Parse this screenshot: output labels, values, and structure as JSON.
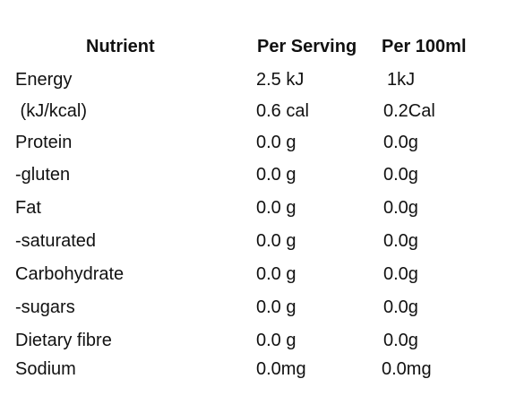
{
  "headers": {
    "nutrient": "Nutrient",
    "per_serving": "Per Serving",
    "per_100ml": "Per 100ml"
  },
  "rows": [
    {
      "name": "Energy",
      "per_serving": "2.5 kJ",
      "per_100ml": "1kJ"
    },
    {
      "name": " (kJ/kcal)",
      "per_serving": "0.6 cal",
      "per_100ml": "0.2Cal"
    },
    {
      "name": "Protein",
      "per_serving": "0.0 g",
      "per_100ml": "0.0g"
    },
    {
      "name": "-gluten",
      "per_serving": "0.0 g",
      "per_100ml": "0.0g"
    },
    {
      "name": "Fat",
      "per_serving": "0.0 g",
      "per_100ml": "0.0g"
    },
    {
      "name": "-saturated",
      "per_serving": "0.0 g",
      "per_100ml": "0.0g"
    },
    {
      "name": "Carbohydrate",
      "per_serving": "0.0 g",
      "per_100ml": "0.0g"
    },
    {
      "name": "-sugars",
      "per_serving": "0.0 g",
      "per_100ml": "0.0g"
    },
    {
      "name": "Dietary fibre",
      "per_serving": "0.0 g",
      "per_100ml": "0.0g"
    },
    {
      "name": "Sodium",
      "per_serving": "0.0mg",
      "per_100ml": "0.0mg"
    }
  ]
}
